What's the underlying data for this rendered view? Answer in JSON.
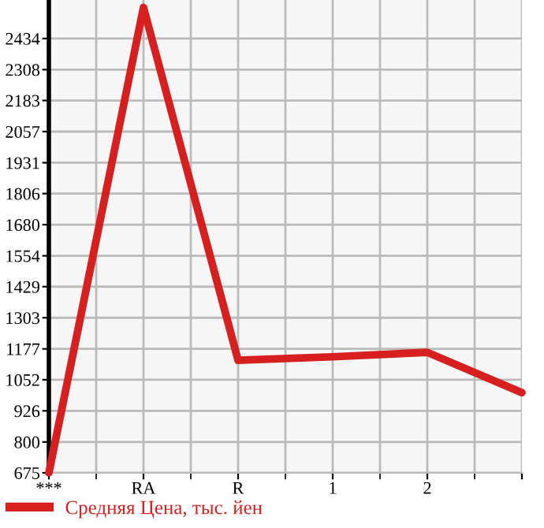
{
  "chart_data": {
    "type": "line",
    "categories": [
      "***",
      "RA",
      "R",
      "1",
      "2",
      null
    ],
    "series": [
      {
        "name": "Средняя Цена, тыс. йен",
        "color": "#d71f1f",
        "values": [
          675,
          2560,
          1131,
          1145,
          1163,
          1000
        ]
      }
    ],
    "ylim": [
      675,
      2590
    ],
    "yticks": [
      675,
      800,
      926,
      1052,
      1177,
      1303,
      1429,
      1554,
      1680,
      1806,
      1931,
      2057,
      2183,
      2308,
      2434
    ],
    "grid": true,
    "legend": "bottom",
    "marker": "none",
    "line_style": "solid"
  }
}
